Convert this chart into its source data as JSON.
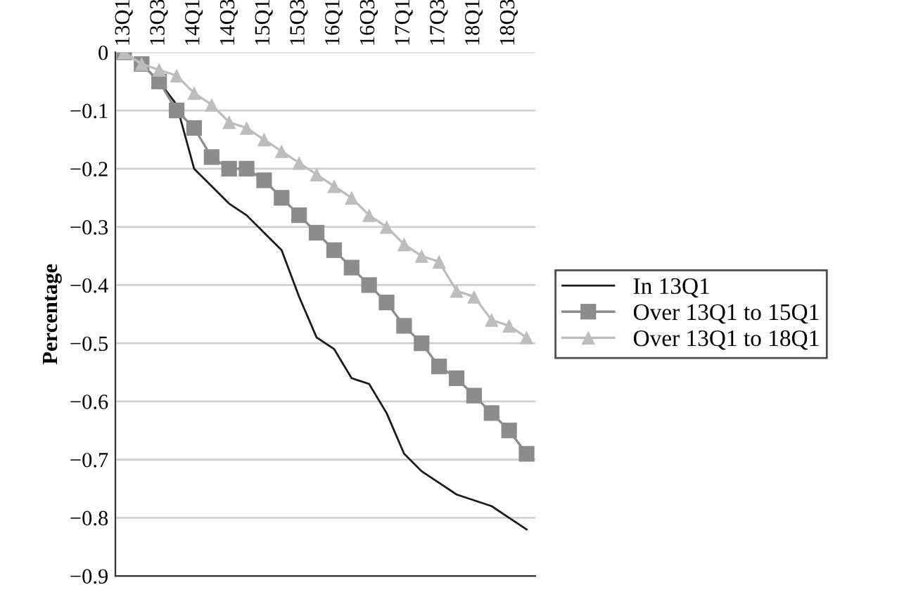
{
  "chart_data": {
    "type": "line",
    "ylabel": "Percentage",
    "categories": [
      "13Q1",
      null,
      "13Q3",
      null,
      "14Q1",
      null,
      "14Q3",
      null,
      "15Q1",
      null,
      "15Q3",
      null,
      "16Q1",
      null,
      "16Q3",
      null,
      "17Q1",
      null,
      "17Q3",
      null,
      "18Q1",
      null,
      "18Q3",
      null
    ],
    "series": [
      {
        "name": "In 13Q1",
        "color": "#1a1a1a",
        "marker": "none",
        "values": [
          0,
          -0.02,
          -0.05,
          -0.09,
          -0.2,
          -0.23,
          -0.26,
          -0.28,
          -0.31,
          -0.34,
          -0.42,
          -0.49,
          -0.51,
          -0.56,
          -0.57,
          -0.62,
          -0.69,
          -0.72,
          -0.74,
          -0.76,
          -0.77,
          -0.78,
          -0.8,
          -0.82
        ]
      },
      {
        "name": "Over 13Q1 to 15Q1",
        "color": "#8c8c8c",
        "marker": "square",
        "values": [
          0,
          -0.02,
          -0.05,
          -0.1,
          -0.13,
          -0.18,
          -0.2,
          -0.2,
          -0.22,
          -0.25,
          -0.28,
          -0.31,
          -0.34,
          -0.37,
          -0.4,
          -0.43,
          -0.47,
          -0.5,
          -0.54,
          -0.56,
          -0.59,
          -0.62,
          -0.65,
          -0.69
        ]
      },
      {
        "name": "Over 13Q1 to 18Q1",
        "color": "#bdbdbd",
        "marker": "triangle",
        "values": [
          0,
          -0.02,
          -0.03,
          -0.04,
          -0.07,
          -0.09,
          -0.12,
          -0.13,
          -0.15,
          -0.17,
          -0.19,
          -0.21,
          -0.23,
          -0.25,
          -0.28,
          -0.3,
          -0.33,
          -0.35,
          -0.36,
          -0.41,
          -0.42,
          -0.46,
          -0.47,
          -0.49
        ]
      }
    ],
    "ylim": [
      -0.9,
      0
    ],
    "yticks": [
      0,
      -0.1,
      -0.2,
      -0.3,
      -0.4,
      -0.5,
      -0.6,
      -0.7,
      -0.8,
      -0.9
    ],
    "grid": "y",
    "legend": "right",
    "line_style": "solid"
  }
}
